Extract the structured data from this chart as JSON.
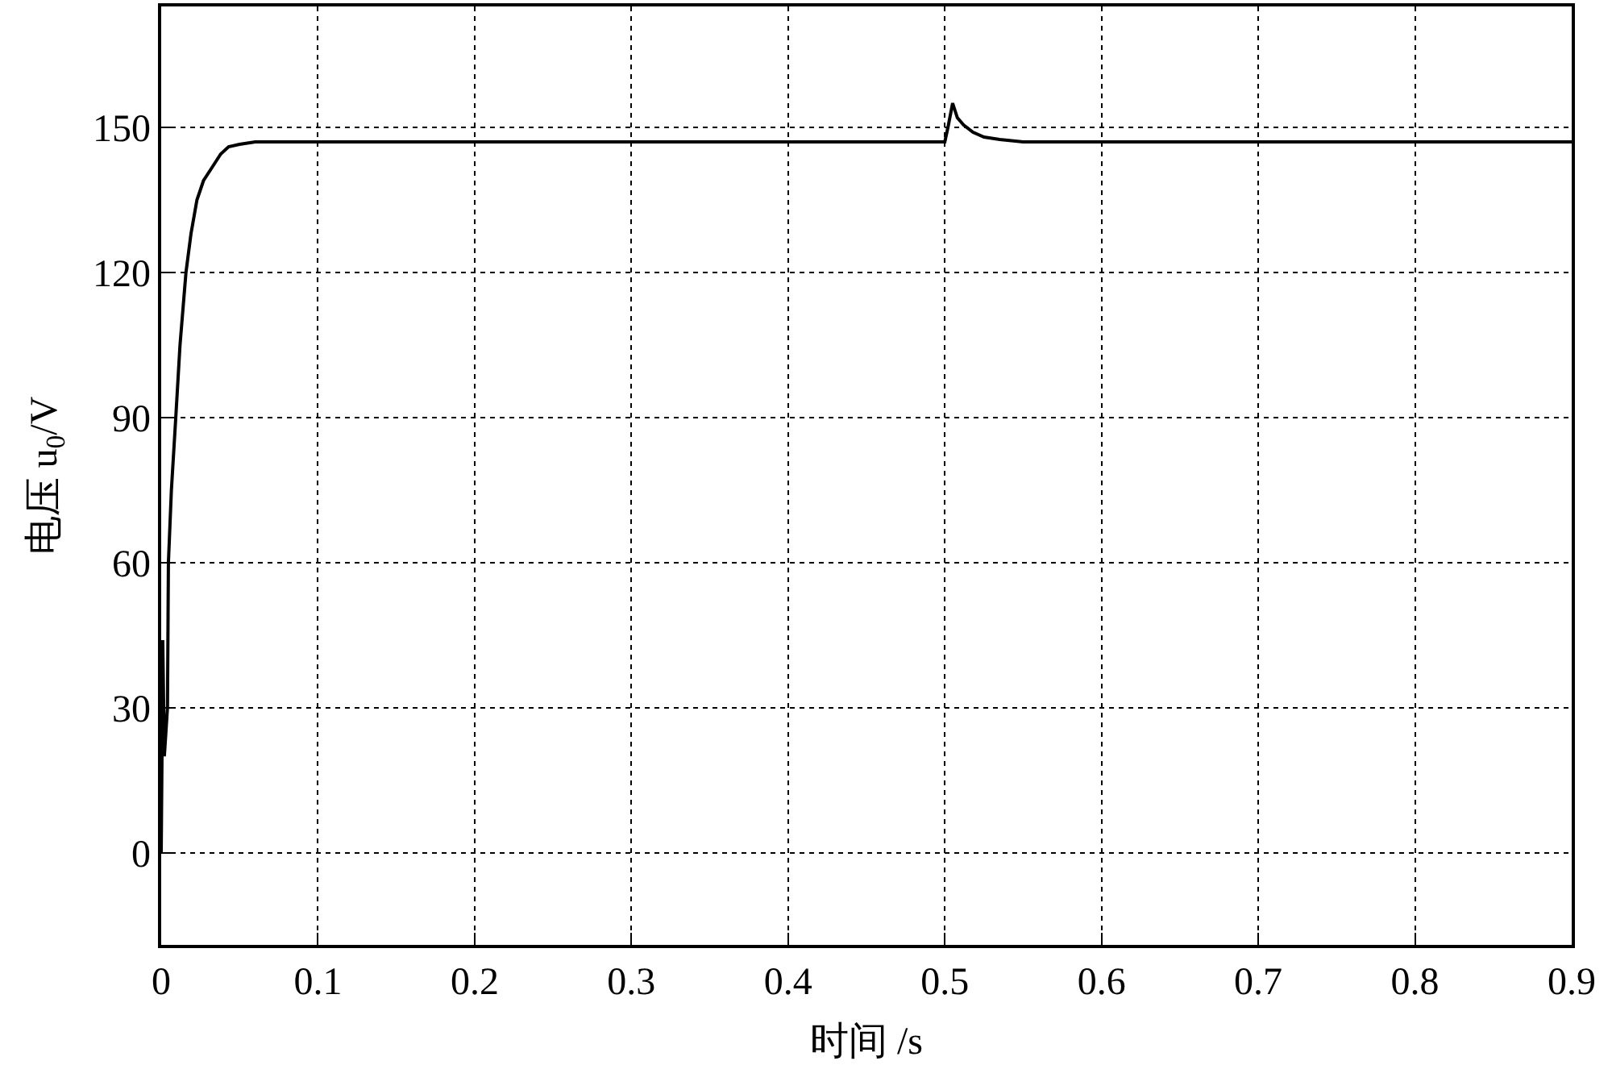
{
  "chart_data": {
    "type": "line",
    "xlabel": "时间 /s",
    "ylabel": "电压 u$_{0}$/V",
    "x": [
      0,
      0.0005,
      0.001,
      0.002,
      0.003,
      0.004,
      0.0046,
      0.0065,
      0.0093,
      0.012,
      0.0158,
      0.019,
      0.0228,
      0.027,
      0.033,
      0.038,
      0.043,
      0.05,
      0.06,
      0.08,
      0.1,
      0.2,
      0.3,
      0.4,
      0.5,
      0.502,
      0.505,
      0.508,
      0.512,
      0.518,
      0.525,
      0.535,
      0.55,
      0.6,
      0.7,
      0.8,
      0.9
    ],
    "series": [
      {
        "color": "#000000",
        "values": [
          0,
          20,
          44,
          20,
          25,
          30,
          60,
          75,
          90,
          105,
          120,
          128,
          135,
          139,
          142,
          144.5,
          146,
          146.5,
          147,
          147,
          147,
          147,
          147,
          147,
          147,
          150,
          155,
          152,
          150.5,
          149,
          148,
          147.5,
          147,
          147,
          147,
          147,
          147
        ]
      }
    ],
    "xlim": [
      0,
      0.9
    ],
    "xticks": [
      0,
      0.1,
      0.2,
      0.3,
      0.4,
      0.5,
      0.6,
      0.7,
      0.8,
      0.9
    ],
    "ylim": [
      -19,
      175
    ],
    "yticks": [
      0,
      30,
      60,
      90,
      120,
      150
    ],
    "grid": true,
    "marker": "none",
    "line_style": "solid"
  }
}
